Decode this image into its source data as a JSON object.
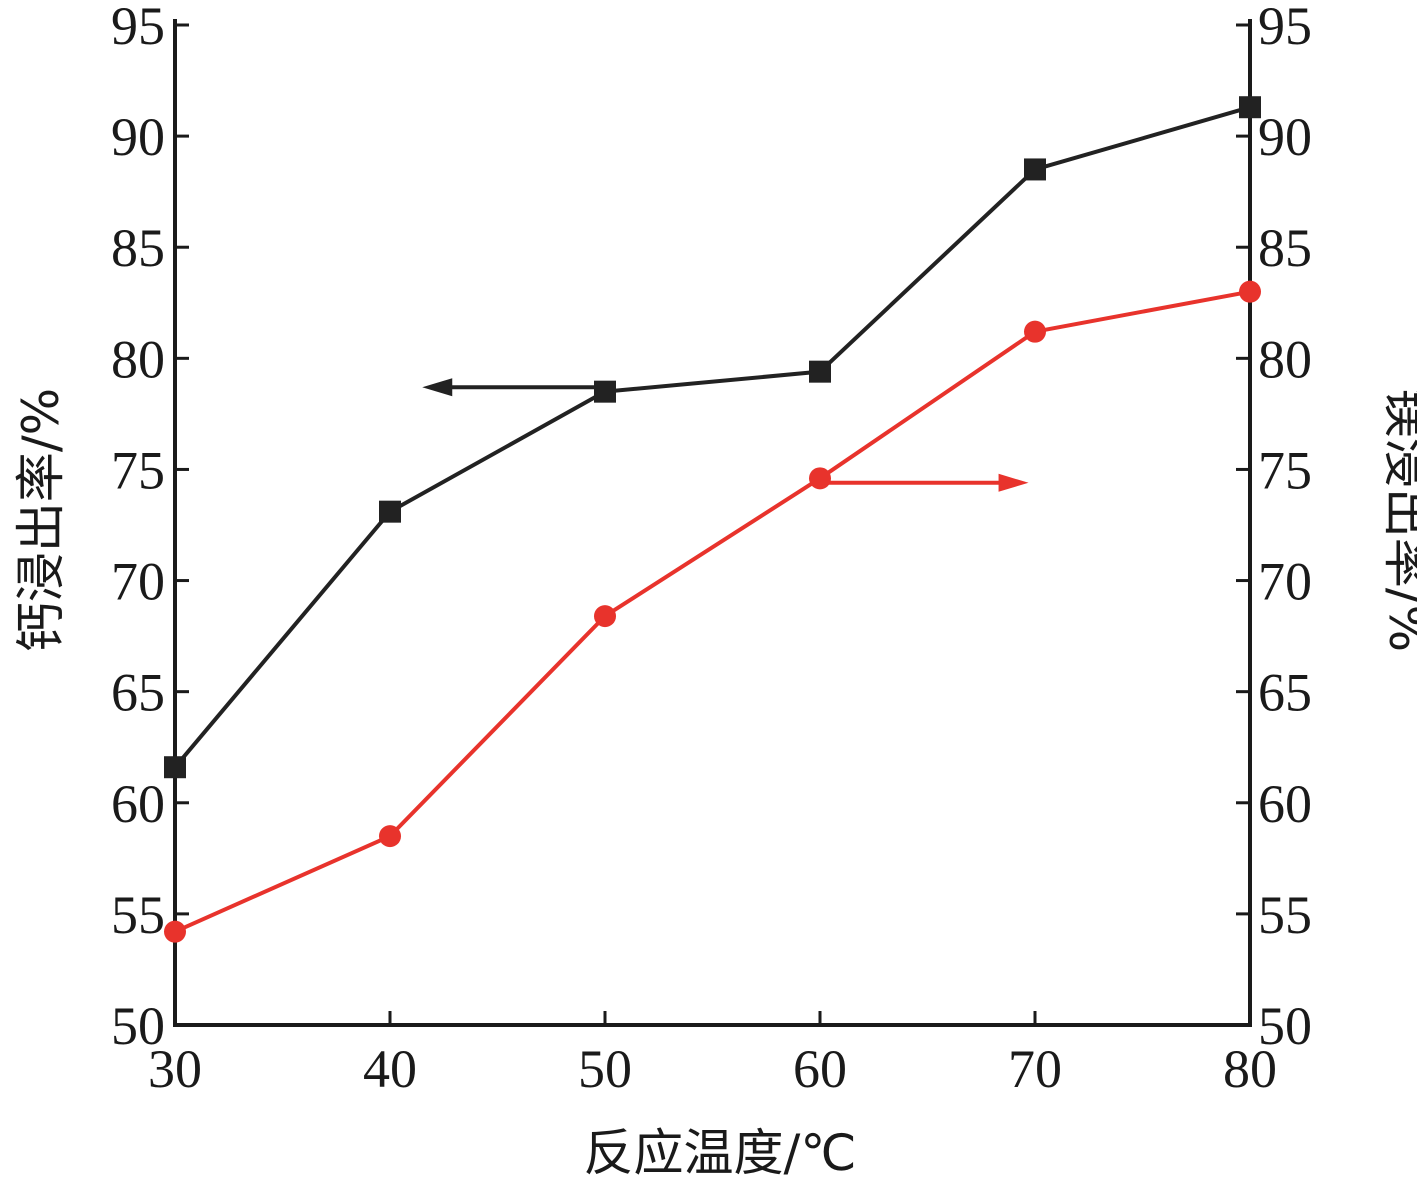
{
  "chart_data": {
    "type": "line",
    "x": [
      30,
      40,
      50,
      60,
      70,
      80
    ],
    "xlim": [
      30,
      80
    ],
    "xticks": [
      30,
      40,
      50,
      60,
      70,
      80
    ],
    "xlabel": "反应温度/℃",
    "y_left": {
      "label": "钙浸出率/%",
      "lim": [
        50,
        95
      ],
      "ticks": [
        50,
        55,
        60,
        65,
        70,
        75,
        80,
        85,
        90,
        95
      ]
    },
    "y_right": {
      "label": "镁浸出率/%",
      "lim": [
        50,
        95
      ],
      "ticks": [
        50,
        55,
        60,
        65,
        70,
        75,
        80,
        85,
        90,
        95
      ]
    },
    "series": [
      {
        "axis": "left",
        "marker": "square",
        "color": "#222222",
        "values": [
          61.6,
          73.1,
          78.5,
          79.4,
          88.5,
          91.3
        ],
        "arrow": {
          "direction": "left",
          "from_x": 50,
          "to_x": 41.5,
          "y": 78.7
        }
      },
      {
        "axis": "right",
        "marker": "circle",
        "color": "#e8332c",
        "values": [
          54.2,
          58.5,
          68.4,
          74.6,
          81.2,
          83.0
        ],
        "arrow": {
          "direction": "right",
          "from_x": 60,
          "to_x": 69.7,
          "y": 74.4
        }
      }
    ],
    "grid": false,
    "legend": "none"
  }
}
